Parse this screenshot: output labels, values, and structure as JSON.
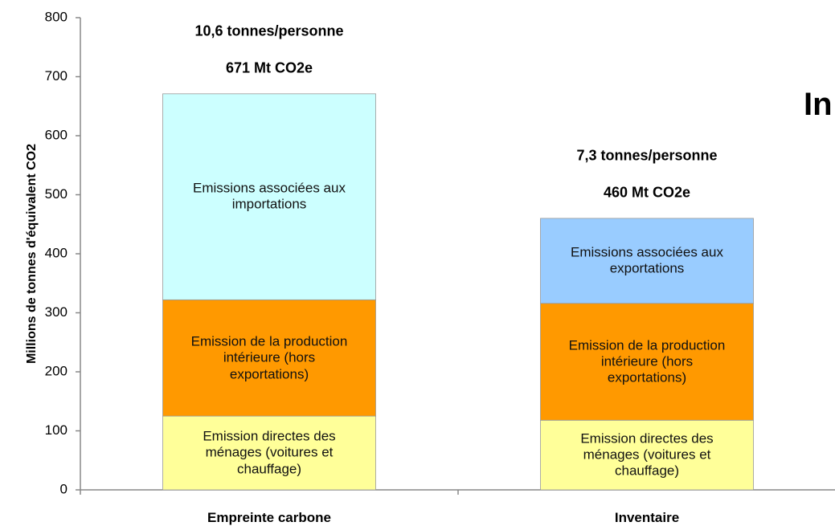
{
  "chart_data": {
    "type": "bar",
    "stacked": true,
    "title": "In",
    "y_label": "Millions de tonnes d'équivalent CO2",
    "categories": [
      "Empreinte carbone",
      "Inventaire"
    ],
    "bar_annotations": [
      [
        "10,6 tonnes/personne",
        "671 Mt CO2e"
      ],
      [
        "7,3 tonnes/personne",
        "460 Mt CO2e"
      ]
    ],
    "series": [
      {
        "name": "Emission directes des ménages (voitures et chauffage)",
        "color": "#ffff99",
        "values": [
          125,
          118
        ]
      },
      {
        "name": "Emission de la production intérieure (hors exportations)",
        "color": "#ff9900",
        "values": [
          197,
          198
        ]
      },
      {
        "name": "Emissions associées aux importations",
        "color": "#ccffff",
        "values": [
          349,
          null
        ]
      },
      {
        "name": "Emissions associées aux exportations",
        "color": "#99ccff",
        "values": [
          null,
          144
        ]
      }
    ],
    "ylim": [
      0,
      800
    ],
    "yticks": [
      0,
      100,
      200,
      300,
      400,
      500,
      600,
      700,
      800
    ]
  }
}
